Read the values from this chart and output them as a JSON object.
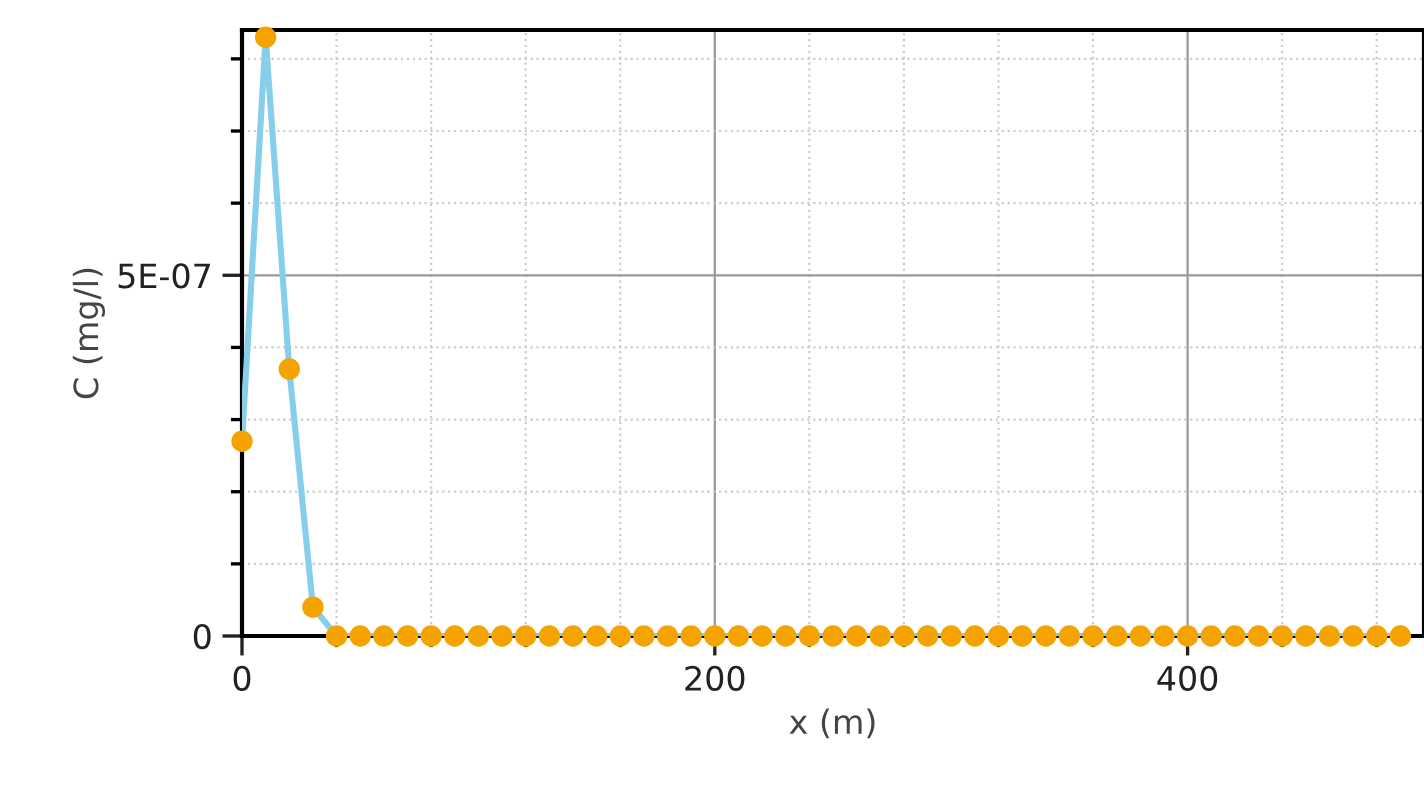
{
  "chart_data": {
    "type": "line",
    "xlabel": "x (m)",
    "ylabel": "C (mg/l)",
    "xlim": [
      0,
      500
    ],
    "ylim": [
      0,
      8.4e-07
    ],
    "xticks": [
      0,
      {
        "value": 40,
        "label": null
      },
      {
        "value": 80,
        "label": null
      },
      {
        "value": 120,
        "label": null
      },
      {
        "value": 160,
        "label": null
      },
      200,
      {
        "value": 240,
        "label": null
      },
      {
        "value": 280,
        "label": null
      },
      {
        "value": 320,
        "label": null
      },
      {
        "value": 360,
        "label": null
      },
      400,
      {
        "value": 440,
        "label": null
      },
      {
        "value": 480,
        "label": null
      }
    ],
    "yticks": [
      0,
      {
        "value": 1e-07,
        "label": null
      },
      {
        "value": 2e-07,
        "label": null
      },
      {
        "value": 3e-07,
        "label": null
      },
      {
        "value": 4e-07,
        "label": null
      },
      {
        "value": 5e-07,
        "label": "5E-07"
      },
      {
        "value": 6e-07,
        "label": null
      },
      {
        "value": 7e-07,
        "label": null
      },
      {
        "value": 8e-07,
        "label": null
      }
    ],
    "grid": true,
    "x": [
      0,
      10,
      20,
      30,
      40,
      50,
      60,
      70,
      80,
      90,
      100,
      110,
      120,
      130,
      140,
      150,
      160,
      170,
      180,
      190,
      200,
      210,
      220,
      230,
      240,
      250,
      260,
      270,
      280,
      290,
      300,
      310,
      320,
      330,
      340,
      350,
      360,
      370,
      380,
      390,
      400,
      410,
      420,
      430,
      440,
      450,
      460,
      470,
      480,
      490
    ],
    "series": [
      {
        "color": "#87ceeb",
        "marker": "none",
        "values": [
          2.7e-07,
          8.3e-07,
          3.7e-07,
          4e-08,
          0,
          0,
          0,
          0,
          0,
          0,
          0,
          0,
          0,
          0,
          0,
          0,
          0,
          0,
          0,
          0,
          0,
          0,
          0,
          0,
          0,
          0,
          0,
          0,
          0,
          0,
          0,
          0,
          0,
          0,
          0,
          0,
          0,
          0,
          0,
          0,
          0,
          0,
          0,
          0,
          0,
          0,
          0,
          0,
          0,
          0
        ]
      },
      {
        "type": "scatter",
        "color": "#f5a300",
        "marker": "circle",
        "values": [
          2.7e-07,
          8.3e-07,
          3.7e-07,
          4e-08,
          0,
          0,
          0,
          0,
          0,
          0,
          0,
          0,
          0,
          0,
          0,
          0,
          0,
          0,
          0,
          0,
          0,
          0,
          0,
          0,
          0,
          0,
          0,
          0,
          0,
          0,
          0,
          0,
          0,
          0,
          0,
          0,
          0,
          0,
          0,
          0,
          0,
          0,
          0,
          0,
          0,
          0,
          0,
          0,
          0,
          0
        ]
      }
    ]
  }
}
